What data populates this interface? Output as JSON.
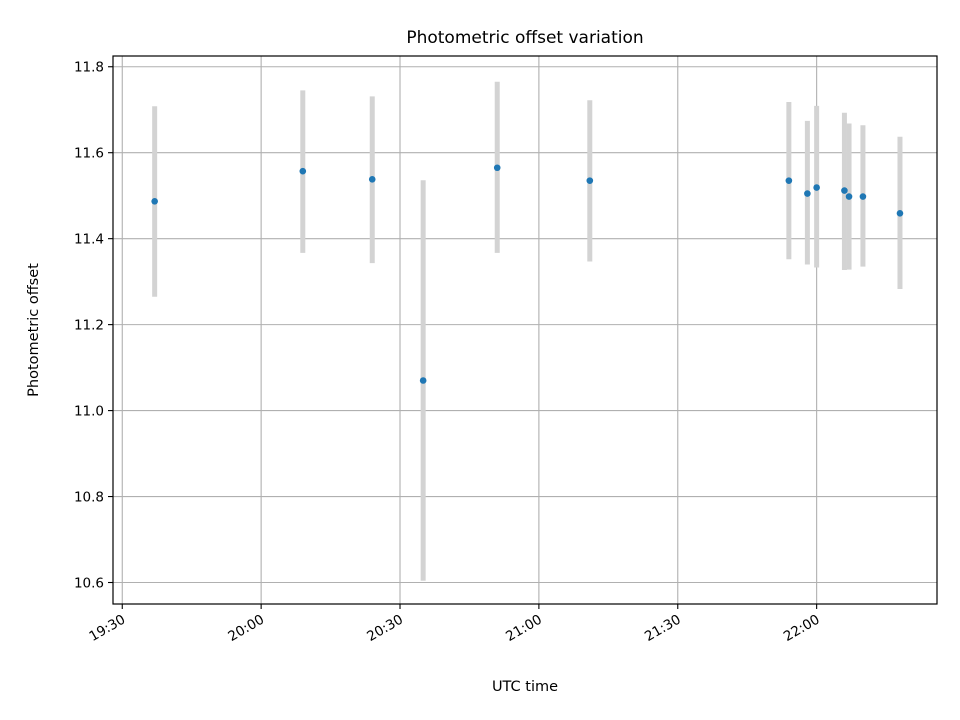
{
  "chart_data": {
    "type": "scatter",
    "title": "Photometric offset variation",
    "xlabel": "UTC time",
    "ylabel": "Photometric offset",
    "xlim": [
      "19:28",
      "22:26"
    ],
    "ylim": [
      10.55,
      11.825
    ],
    "grid": true,
    "x_ticks": [
      "19:30",
      "20:00",
      "20:30",
      "21:00",
      "21:30",
      "22:00"
    ],
    "y_ticks": [
      10.6,
      10.8,
      11.0,
      11.2,
      11.4,
      11.6,
      11.8
    ],
    "y_tick_labels": [
      "10.6",
      "10.8",
      "11.0",
      "11.2",
      "11.4",
      "11.6",
      "11.8"
    ],
    "colors": {
      "points": "#1f77b4",
      "error_bars": "#d3d3d3",
      "grid": "#b0b0b0"
    },
    "points": [
      {
        "x": "19:37",
        "y": 11.487,
        "yerr_low": 11.265,
        "yerr_high": 11.708
      },
      {
        "x": "20:09",
        "y": 11.557,
        "yerr_low": 11.367,
        "yerr_high": 11.745
      },
      {
        "x": "20:24",
        "y": 11.538,
        "yerr_low": 11.343,
        "yerr_high": 11.731
      },
      {
        "x": "20:35",
        "y": 11.07,
        "yerr_low": 10.604,
        "yerr_high": 11.536
      },
      {
        "x": "20:51",
        "y": 11.565,
        "yerr_low": 11.367,
        "yerr_high": 11.765
      },
      {
        "x": "21:11",
        "y": 11.535,
        "yerr_low": 11.347,
        "yerr_high": 11.722
      },
      {
        "x": "21:54",
        "y": 11.535,
        "yerr_low": 11.352,
        "yerr_high": 11.718
      },
      {
        "x": "21:58",
        "y": 11.505,
        "yerr_low": 11.34,
        "yerr_high": 11.674
      },
      {
        "x": "22:00",
        "y": 11.519,
        "yerr_low": 11.333,
        "yerr_high": 11.709
      },
      {
        "x": "22:06",
        "y": 11.512,
        "yerr_low": 11.327,
        "yerr_high": 11.693
      },
      {
        "x": "22:07",
        "y": 11.498,
        "yerr_low": 11.328,
        "yerr_high": 11.668
      },
      {
        "x": "22:10",
        "y": 11.498,
        "yerr_low": 11.335,
        "yerr_high": 11.664
      },
      {
        "x": "22:18",
        "y": 11.459,
        "yerr_low": 11.283,
        "yerr_high": 11.637
      }
    ]
  }
}
